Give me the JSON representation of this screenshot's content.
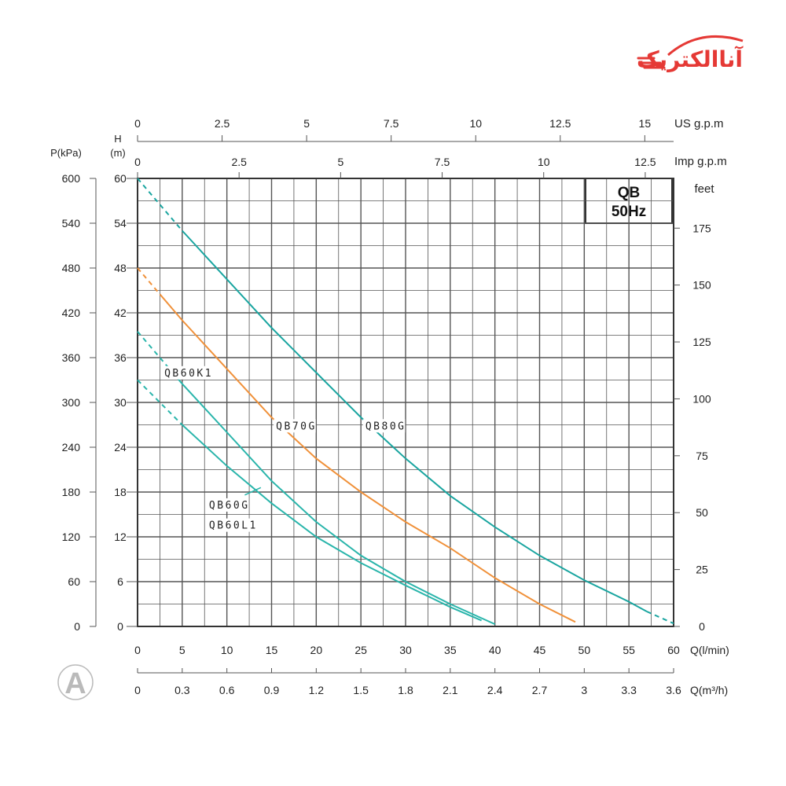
{
  "logo": {
    "text": "آناالکتریک",
    "color": "#e53935",
    "icon": "speed-lines-icon"
  },
  "watermark": {
    "letter": "A",
    "icon": "ar-monogram-icon",
    "color": "#9e9e9e"
  },
  "chart_data": {
    "type": "line",
    "title": "QB",
    "subtitle": "50Hz",
    "grid": true,
    "axes": {
      "x_flow_lmin": {
        "label": "Q(l/min)",
        "range": [
          0,
          60
        ],
        "ticks": [
          "0",
          "5",
          "10",
          "15",
          "20",
          "25",
          "30",
          "35",
          "40",
          "45",
          "50",
          "55",
          "60"
        ]
      },
      "x_flow_m3h": {
        "label": "Q(m³/h)",
        "range": [
          0,
          3.6
        ],
        "ticks": [
          "0",
          "0.3",
          "0.6",
          "0.9",
          "1.2",
          "1.5",
          "1.8",
          "2.1",
          "2.4",
          "2.7",
          "3",
          "3.3",
          "3.6"
        ]
      },
      "x_us_gpm": {
        "label": "US g.p.m",
        "ticks": [
          "0",
          "2.5",
          "5",
          "7.5",
          "10",
          "12.5",
          "15"
        ]
      },
      "x_imp_gpm": {
        "label": "Imp g.p.m",
        "ticks": [
          "0",
          "2.5",
          "5",
          "7.5",
          "10",
          "12.5"
        ]
      },
      "y_head_m": {
        "label_line1": "H",
        "label_line2": "(m)",
        "range": [
          0,
          60
        ],
        "ticks": [
          "0",
          "6",
          "12",
          "18",
          "24",
          "30",
          "36",
          "42",
          "48",
          "54",
          "60"
        ]
      },
      "y_pressure_kpa": {
        "label": "P(kPa)",
        "ticks": [
          "0",
          "60",
          "120",
          "180",
          "240",
          "300",
          "360",
          "420",
          "480",
          "540",
          "600"
        ]
      },
      "y_feet": {
        "label": "feet",
        "ticks": [
          "0",
          "25",
          "50",
          "75",
          "100",
          "125",
          "150",
          "175"
        ]
      }
    },
    "series": [
      {
        "name": "QB80G",
        "color": "#1aa5a0",
        "values": [
          [
            0,
            60
          ],
          [
            5,
            53
          ],
          [
            10,
            46.5
          ],
          [
            15,
            40
          ],
          [
            20,
            34
          ],
          [
            25,
            28
          ],
          [
            30,
            22.5
          ],
          [
            35,
            17.5
          ],
          [
            40,
            13.3
          ],
          [
            45,
            9.5
          ],
          [
            50,
            6.2
          ],
          [
            55,
            3.3
          ],
          [
            57,
            2
          ],
          [
            60,
            0.4
          ]
        ],
        "dashed_until": 5,
        "dashed_from": 57
      },
      {
        "name": "QB70G",
        "color": "#f0913a",
        "values": [
          [
            0,
            48
          ],
          [
            5,
            41
          ],
          [
            10,
            34.5
          ],
          [
            15,
            28
          ],
          [
            20,
            22.5
          ],
          [
            25,
            18
          ],
          [
            30,
            14
          ],
          [
            35,
            10.5
          ],
          [
            40,
            6.5
          ],
          [
            45,
            3
          ],
          [
            49,
            0.6
          ]
        ],
        "dashed_until": 2.5
      },
      {
        "name": "QB60K1",
        "color": "#2ab5ab",
        "values": [
          [
            0,
            39.5
          ],
          [
            5,
            32.5
          ],
          [
            10,
            26
          ],
          [
            15,
            19.5
          ],
          [
            20,
            14
          ],
          [
            25,
            9.5
          ],
          [
            30,
            6
          ],
          [
            35,
            3
          ],
          [
            40,
            0.3
          ]
        ],
        "dashed_until": 4
      },
      {
        "name": "QB60G/QB60L1",
        "color": "#2ab5ab",
        "values": [
          [
            0,
            33
          ],
          [
            5,
            27
          ],
          [
            10,
            21.5
          ],
          [
            15,
            16.5
          ],
          [
            20,
            12
          ],
          [
            25,
            8.5
          ],
          [
            30,
            5.5
          ],
          [
            35,
            2.6
          ],
          [
            38.5,
            0.8
          ]
        ],
        "dashed_until": 5
      }
    ],
    "curve_labels": [
      {
        "text": "QB60K1",
        "at": [
          3,
          33.6
        ]
      },
      {
        "text": "QB70G",
        "at": [
          15.5,
          26.5
        ]
      },
      {
        "text": "QB80G",
        "at": [
          25.5,
          26.5
        ]
      },
      {
        "text": "QB60G",
        "at": [
          8,
          15.9
        ]
      },
      {
        "text": "QB60L1",
        "at": [
          8,
          13.2
        ]
      }
    ]
  }
}
